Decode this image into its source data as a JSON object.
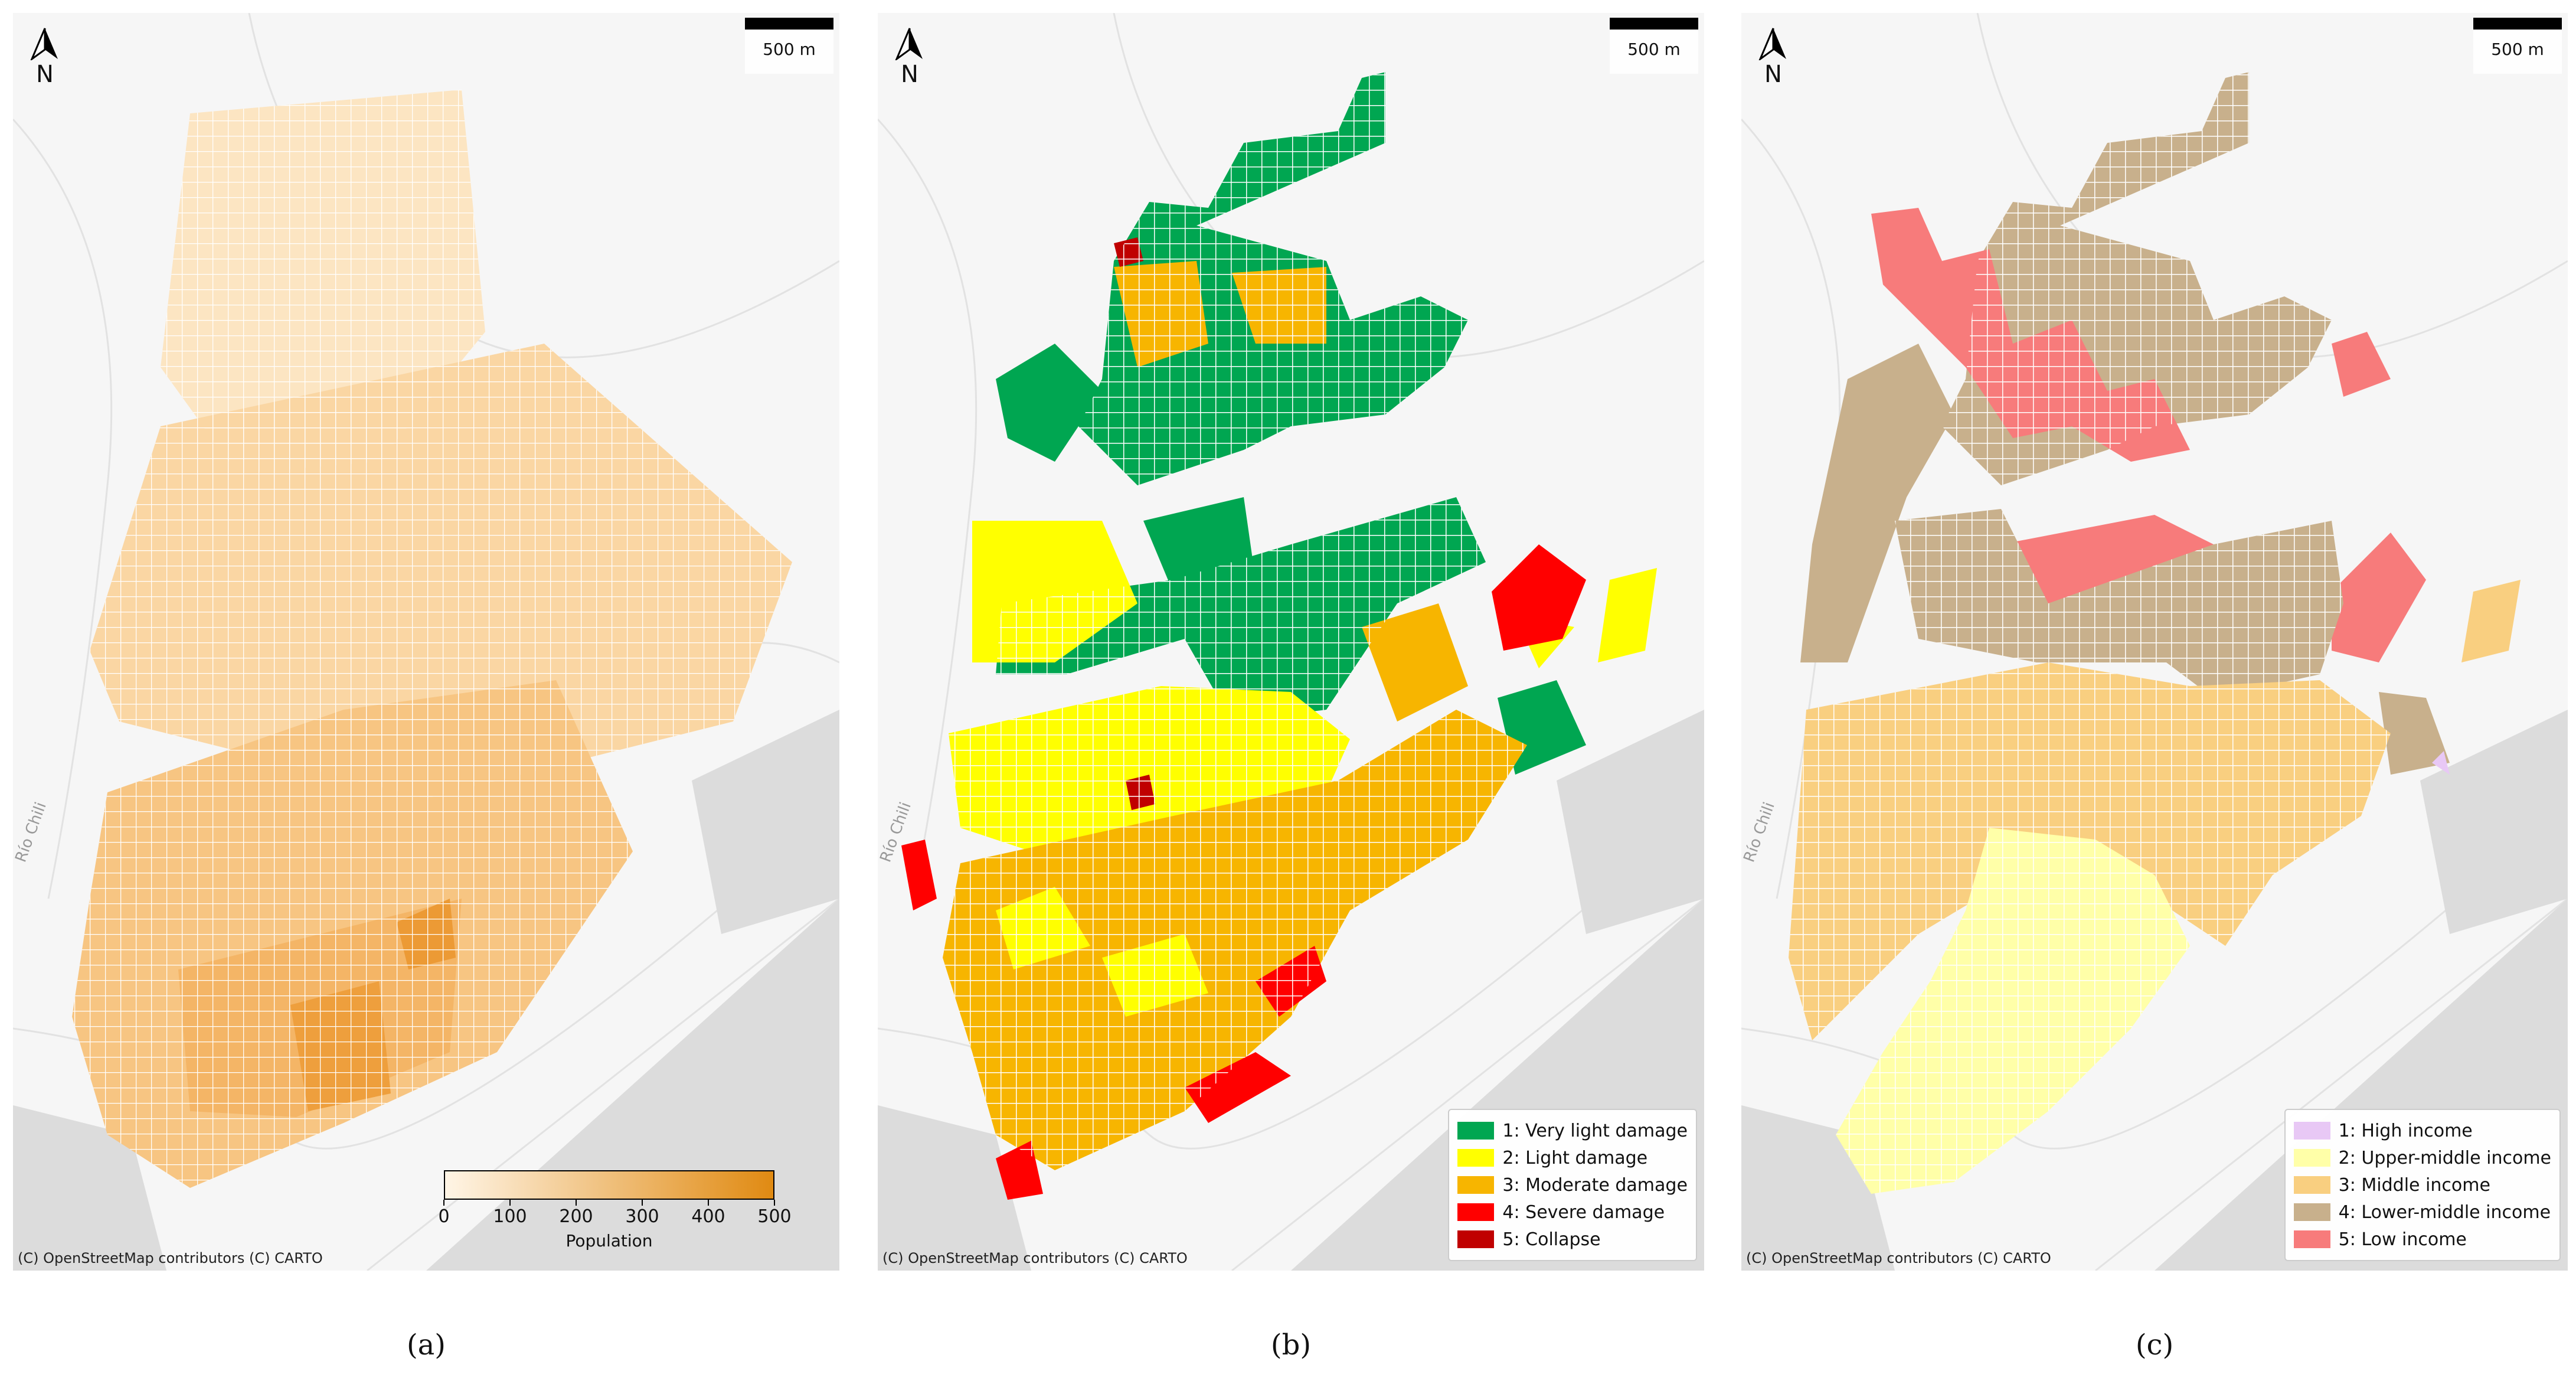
{
  "panels": {
    "a": {
      "caption": "(a)",
      "north": "N",
      "scale": "500 m",
      "attribution": "(C) OpenStreetMap contributors (C) CARTO",
      "street_label": "Río Chili",
      "colorbar": {
        "title": "Population",
        "ticks": [
          "0",
          "100",
          "200",
          "300",
          "400",
          "500"
        ],
        "min": 0,
        "max": 500,
        "colors": [
          "#fff5e6",
          "#e08a12"
        ]
      }
    },
    "b": {
      "caption": "(b)",
      "north": "N",
      "scale": "500 m",
      "attribution": "(C) OpenStreetMap contributors (C) CARTO",
      "street_label": "Río Chili",
      "legend": [
        {
          "label": "1: Very light damage",
          "color": "#00a651"
        },
        {
          "label": "2: Light damage",
          "color": "#ffff00"
        },
        {
          "label": "3: Moderate damage",
          "color": "#f7b500"
        },
        {
          "label": "4: Severe damage",
          "color": "#ff0000"
        },
        {
          "label": "5: Collapse",
          "color": "#c00000"
        }
      ]
    },
    "c": {
      "caption": "(c)",
      "north": "N",
      "scale": "500 m",
      "attribution": "(C) OpenStreetMap contributors (C) CARTO",
      "street_label": "Río Chili",
      "legend": [
        {
          "label": "1: High income",
          "color": "#e8c8f5"
        },
        {
          "label": "2: Upper-middle income",
          "color": "#ffffa8"
        },
        {
          "label": "3: Middle income",
          "color": "#f9cf80"
        },
        {
          "label": "4: Lower-middle income",
          "color": "#c8b08c"
        },
        {
          "label": "5: Low income",
          "color": "#f77b7b"
        }
      ]
    }
  },
  "icons": {
    "north_arrow": "north-arrow-icon"
  }
}
